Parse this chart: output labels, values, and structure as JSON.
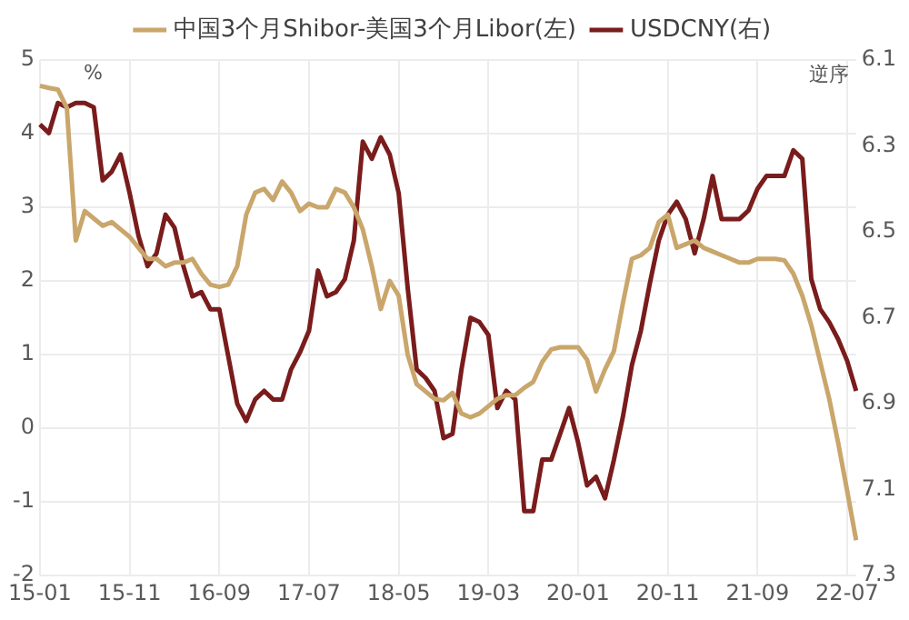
{
  "chart_data": {
    "type": "line",
    "categories": [
      "15-01",
      null,
      null,
      null,
      null,
      null,
      null,
      null,
      null,
      null,
      "15-11",
      null,
      null,
      null,
      null,
      null,
      null,
      null,
      null,
      null,
      "16-09",
      null,
      null,
      null,
      null,
      null,
      null,
      null,
      null,
      null,
      "17-07",
      null,
      null,
      null,
      null,
      null,
      null,
      null,
      null,
      null,
      "18-05",
      null,
      null,
      null,
      null,
      null,
      null,
      null,
      null,
      null,
      "19-03",
      null,
      null,
      null,
      null,
      null,
      null,
      null,
      null,
      null,
      "20-01",
      null,
      null,
      null,
      null,
      null,
      null,
      null,
      null,
      null,
      "20-11",
      null,
      null,
      null,
      null,
      null,
      null,
      null,
      null,
      null,
      "21-09",
      null,
      null,
      null,
      null,
      null,
      null,
      null,
      null,
      null,
      "22-07",
      null
    ],
    "series": [
      {
        "name": "中国3个月Shibor-美国3个月Libor(左)",
        "color": "#c9a66b",
        "values": [
          4.65,
          4.62,
          4.6,
          4.35,
          2.55,
          2.95,
          2.85,
          2.75,
          2.8,
          2.7,
          2.6,
          2.45,
          2.3,
          2.3,
          2.2,
          2.25,
          2.25,
          2.3,
          2.1,
          1.95,
          1.92,
          1.95,
          2.2,
          2.9,
          3.2,
          3.25,
          3.1,
          3.35,
          3.2,
          2.95,
          3.05,
          3.0,
          3.0,
          3.25,
          3.2,
          3.0,
          2.7,
          2.2,
          1.62,
          2.0,
          1.8,
          1.0,
          0.6,
          0.5,
          0.4,
          0.38,
          0.48,
          0.2,
          0.15,
          0.2,
          0.3,
          0.4,
          0.45,
          0.45,
          0.55,
          0.63,
          0.9,
          1.07,
          1.1,
          1.1,
          1.1,
          0.93,
          0.5,
          0.8,
          1.05,
          1.7,
          2.3,
          2.35,
          2.45,
          2.8,
          2.9,
          2.45,
          2.5,
          2.55,
          2.45,
          2.4,
          2.35,
          2.3,
          2.25,
          2.25,
          2.3,
          2.3,
          2.3,
          2.28,
          2.1,
          1.8,
          1.4,
          0.9,
          0.4,
          -0.2,
          -0.85,
          -1.52
        ]
      },
      {
        "name": "USDCNY(右)",
        "color": "#7a1c1c",
        "axis": "y2",
        "values": [
          6.25,
          6.27,
          6.2,
          6.21,
          6.2,
          6.2,
          6.21,
          6.38,
          6.36,
          6.32,
          6.41,
          6.51,
          6.58,
          6.55,
          6.46,
          6.49,
          6.58,
          6.65,
          6.64,
          6.68,
          6.68,
          6.79,
          6.9,
          6.94,
          6.89,
          6.87,
          6.89,
          6.89,
          6.82,
          6.78,
          6.73,
          6.59,
          6.65,
          6.64,
          6.61,
          6.52,
          6.29,
          6.33,
          6.28,
          6.32,
          6.41,
          6.63,
          6.82,
          6.84,
          6.87,
          6.98,
          6.97,
          6.82,
          6.7,
          6.71,
          6.74,
          6.91,
          6.87,
          6.89,
          7.15,
          7.15,
          7.03,
          7.03,
          6.97,
          6.91,
          6.99,
          7.09,
          7.07,
          7.12,
          7.03,
          6.93,
          6.81,
          6.73,
          6.62,
          6.52,
          6.46,
          6.43,
          6.47,
          6.55,
          6.47,
          6.37,
          6.47,
          6.47,
          6.47,
          6.45,
          6.4,
          6.37,
          6.37,
          6.37,
          6.31,
          6.33,
          6.61,
          6.68,
          6.71,
          6.75,
          6.8,
          6.87
        ]
      }
    ],
    "ylabel": "%",
    "y2label": "逆序",
    "ylim": [
      -2,
      5
    ],
    "yticks": [
      -2,
      -1,
      0,
      1,
      2,
      3,
      4,
      5
    ],
    "y2lim": [
      7.3,
      6.1
    ],
    "y2ticks": [
      6.1,
      6.3,
      6.5,
      6.7,
      6.9,
      7.1,
      7.3
    ],
    "grid": true,
    "legend": "top",
    "marker": "none",
    "line_style": "solid"
  }
}
